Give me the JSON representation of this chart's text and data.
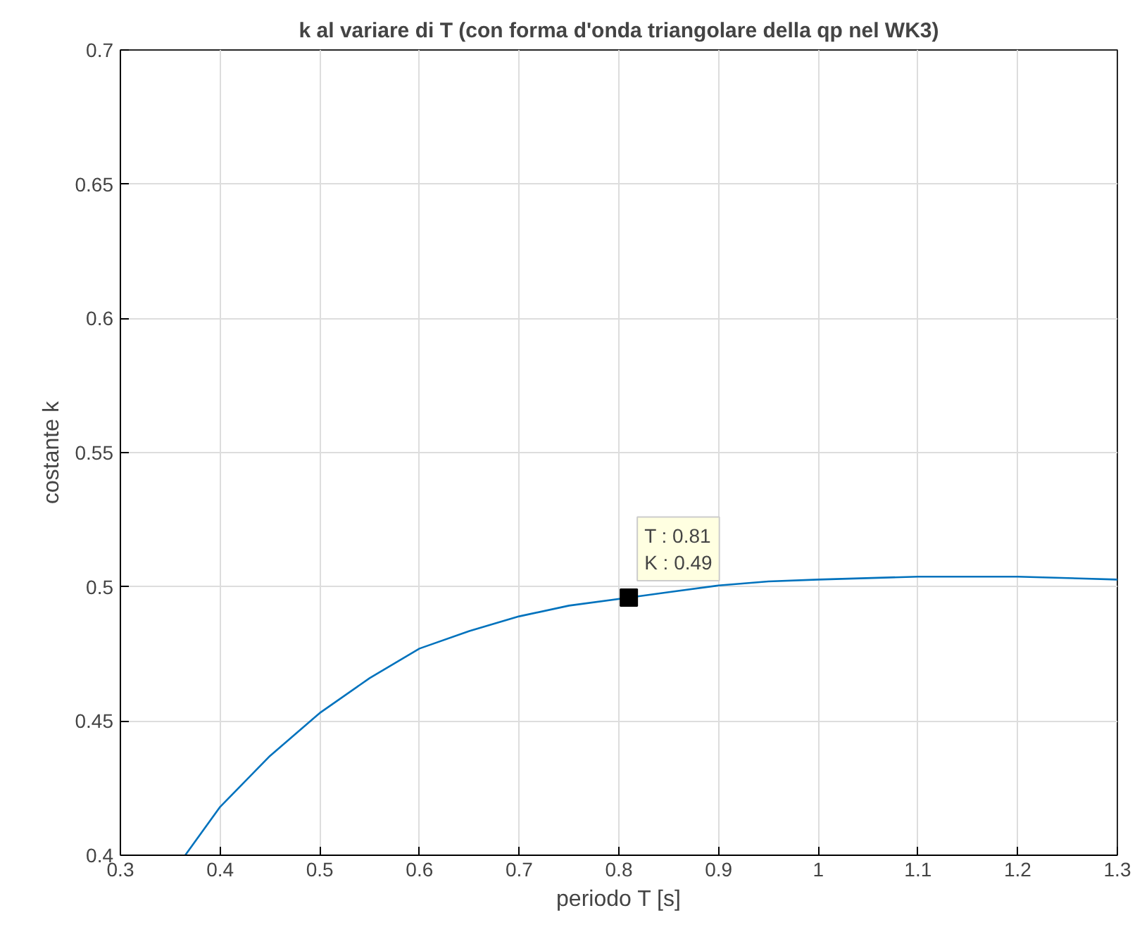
{
  "chart_data": {
    "type": "line",
    "title": "k al variare di T (con forma d'onda triangolare della qp nel WK3)",
    "xlabel": "periodo T [s]",
    "ylabel": "costante k",
    "series": [
      {
        "color": "#0072bd",
        "x": [
          0.365,
          0.4,
          0.45,
          0.5,
          0.55,
          0.6,
          0.65,
          0.7,
          0.75,
          0.81,
          0.85,
          0.9,
          0.95,
          1.0,
          1.1,
          1.2,
          1.3
        ],
        "values": [
          0.4,
          0.418,
          0.437,
          0.453,
          0.466,
          0.477,
          0.4835,
          0.489,
          0.493,
          0.496,
          0.498,
          0.5005,
          0.502,
          0.5027,
          0.5038,
          0.5038,
          0.5027
        ]
      },
      {
        "type": "scatter",
        "marker": "square",
        "color": "#000000",
        "x": [
          0.81
        ],
        "values": [
          0.496
        ]
      }
    ],
    "annotations": [
      {
        "text": "T : 0.81\nK : 0.49",
        "x": 0.81,
        "y": 0.496
      }
    ],
    "xlim": [
      0.3,
      1.3
    ],
    "xticks": [
      0.3,
      0.4,
      0.5,
      0.6,
      0.7,
      0.8,
      0.9,
      1,
      1.1,
      1.2,
      1.3
    ],
    "ylim": [
      0.4,
      0.7
    ],
    "yticks": [
      0.4,
      0.45,
      0.5,
      0.55,
      0.6,
      0.65,
      0.7
    ],
    "grid": true
  }
}
